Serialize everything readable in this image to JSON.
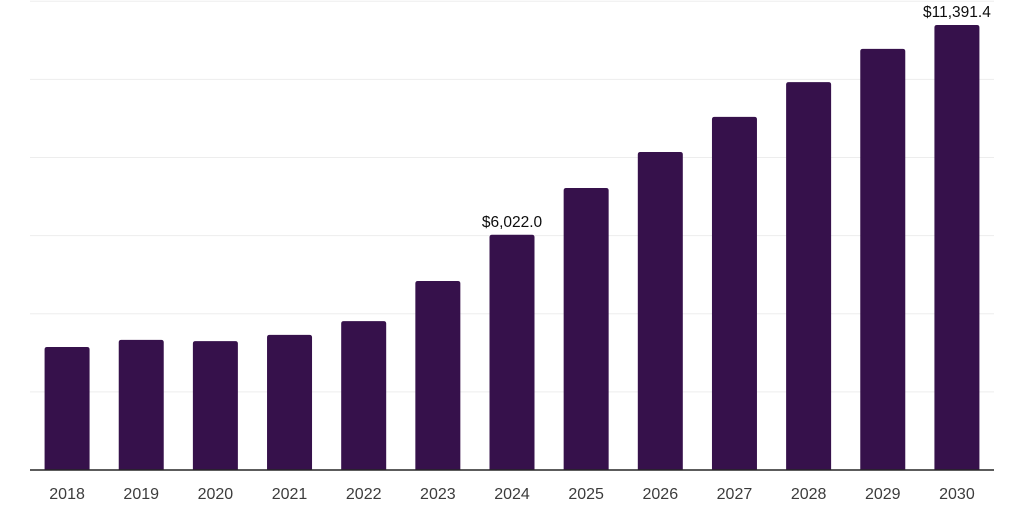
{
  "chart": {
    "background_color": "#ffffff",
    "bar_color": "#36114b",
    "grid_color": "#ededed",
    "axis_line_color": "#262626",
    "tick_label_color": "#3c3c3c",
    "value_label_color": "#0d0d0d"
  },
  "chart_data": {
    "type": "bar",
    "title": "",
    "xlabel": "",
    "ylabel": "",
    "categories": [
      "2018",
      "2019",
      "2020",
      "2021",
      "2022",
      "2023",
      "2024",
      "2025",
      "2026",
      "2027",
      "2028",
      "2029",
      "2030"
    ],
    "values": [
      3150,
      3330,
      3300,
      3460,
      3810,
      4840,
      6022.0,
      7220,
      8140,
      9040,
      9930,
      10780,
      11391.4
    ],
    "data_labels": [
      "",
      "",
      "",
      "",
      "",
      "",
      "$6,022.0",
      "",
      "",
      "",
      "",
      "",
      "$11,391.4"
    ],
    "ylim": [
      0,
      12000
    ],
    "gridline_step": 2000,
    "grid": "horizontal-only",
    "legend": "none",
    "y_axis_tick_labels_shown": false
  }
}
